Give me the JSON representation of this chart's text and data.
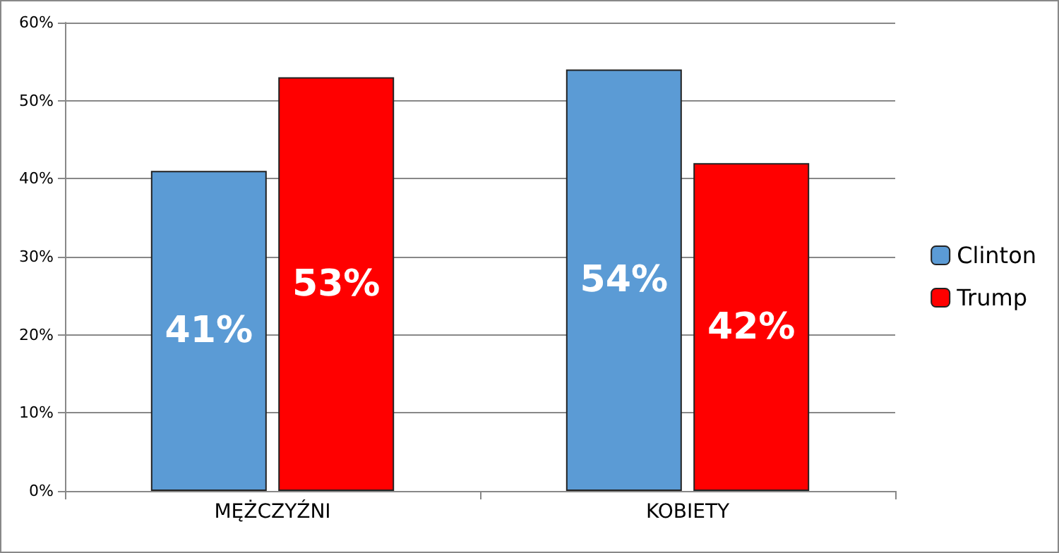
{
  "chart_data": {
    "type": "bar",
    "categories": [
      "MĘŻCZYŹNI",
      "KOBIETY"
    ],
    "series": [
      {
        "name": "Clinton",
        "color": "#5b9bd5",
        "values": [
          41,
          54
        ],
        "value_labels": [
          "41%",
          "54%"
        ]
      },
      {
        "name": "Trump",
        "color": "#ff0000",
        "values": [
          53,
          42
        ],
        "value_labels": [
          "53%",
          "42%"
        ]
      }
    ],
    "ylim": [
      0,
      60
    ],
    "yticks": [
      {
        "value": 0,
        "label": "0%"
      },
      {
        "value": 10,
        "label": "10%"
      },
      {
        "value": 20,
        "label": "20%"
      },
      {
        "value": 30,
        "label": "30%"
      },
      {
        "value": 40,
        "label": "40%"
      },
      {
        "value": 50,
        "label": "50%"
      },
      {
        "value": 60,
        "label": "60%"
      }
    ],
    "grid": "y",
    "legend": "right"
  }
}
